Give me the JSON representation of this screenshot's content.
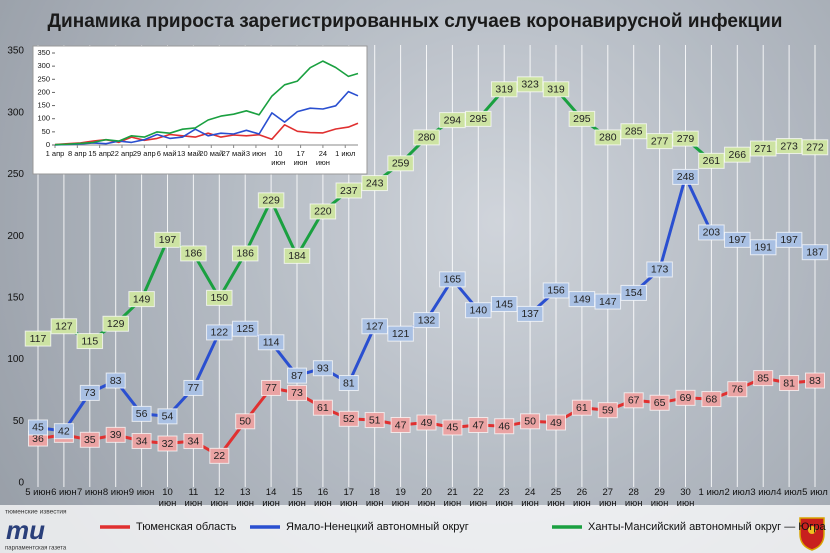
{
  "chart_data": [
    {
      "type": "line",
      "title": "Динамика прироста зарегистрированных случаев коронавирусной инфекции",
      "categories": [
        "5 июн",
        "6 июн",
        "7 июн",
        "8 июн",
        "9 июн",
        "10 июн",
        "11 июн",
        "12 июн",
        "13 июн",
        "14 июн",
        "15 июн",
        "16 июн",
        "17 июн",
        "18 июн",
        "19 июн",
        "20 июн",
        "21 июн",
        "22 июн",
        "23 июн",
        "24 июн",
        "25 июн",
        "26 июн",
        "27 июн",
        "28 июн",
        "29 июн",
        "30 июн",
        "1 июл",
        "2 июл",
        "3 июл",
        "4 июл",
        "5 июл"
      ],
      "series": [
        {
          "name": "Тюменская область",
          "color": "#e03030",
          "label_color": "#eaa3a3",
          "values": [
            36,
            39,
            35,
            39,
            34,
            32,
            34,
            22,
            50,
            77,
            73,
            61,
            52,
            51,
            47,
            49,
            45,
            47,
            46,
            50,
            49,
            61,
            59,
            67,
            65,
            69,
            68,
            76,
            85,
            81,
            83
          ]
        },
        {
          "name": "Ямало-Ненецкий автономный округ",
          "color": "#2a4fd0",
          "label_color": "#a9c0e3",
          "values": [
            45,
            42,
            73,
            83,
            56,
            54,
            77,
            122,
            125,
            114,
            87,
            93,
            81,
            127,
            121,
            132,
            165,
            140,
            145,
            137,
            156,
            149,
            147,
            154,
            173,
            248,
            203,
            197,
            191,
            197,
            187
          ]
        },
        {
          "name": "Ханты-Мансийский автономный округ — Югра",
          "color": "#1aa040",
          "label_color": "#cde3a3",
          "values": [
            117,
            127,
            115,
            129,
            149,
            197,
            186,
            150,
            186,
            229,
            184,
            220,
            237,
            243,
            259,
            280,
            294,
            295,
            319,
            323,
            319,
            295,
            280,
            285,
            277,
            279,
            261,
            266,
            271,
            273,
            272
          ]
        }
      ],
      "ylim": [
        0,
        350
      ],
      "yticks": [
        0,
        50,
        100,
        150,
        200,
        250,
        300,
        350
      ],
      "grid": true,
      "legend": "bottom"
    },
    {
      "type": "line",
      "x": [
        0,
        4,
        8,
        12,
        16,
        20,
        24,
        28,
        32,
        36,
        40,
        44,
        48,
        52,
        56,
        60,
        64,
        68,
        72,
        76,
        80,
        84,
        88,
        92,
        95
      ],
      "series": [
        {
          "color": "#e03030",
          "values": [
            2,
            5,
            8,
            15,
            20,
            10,
            30,
            18,
            25,
            40,
            35,
            30,
            45,
            30,
            38,
            35,
            39,
            22,
            77,
            52,
            47,
            46,
            61,
            68,
            83
          ]
        },
        {
          "color": "#2a4fd0",
          "values": [
            0,
            2,
            4,
            8,
            5,
            15,
            10,
            20,
            40,
            25,
            30,
            60,
            35,
            45,
            42,
            56,
            42,
            122,
            87,
            127,
            140,
            137,
            149,
            203,
            187
          ]
        },
        {
          "color": "#1aa040",
          "values": [
            1,
            3,
            6,
            10,
            20,
            15,
            35,
            30,
            50,
            45,
            60,
            65,
            95,
            110,
            117,
            130,
            115,
            186,
            229,
            243,
            294,
            319,
            295,
            261,
            272
          ]
        }
      ],
      "xlim": [
        0,
        95
      ],
      "xticks": [
        {
          "value": 0,
          "label": "1 апр"
        },
        {
          "value": 7,
          "label": "8 апр"
        },
        {
          "value": 14,
          "label": "15 апр"
        },
        {
          "value": 21,
          "label": "22 апр"
        },
        {
          "value": 28,
          "label": "29 апр"
        },
        {
          "value": 35,
          "label": "6 май"
        },
        {
          "value": 42,
          "label": "13 май"
        },
        {
          "value": 49,
          "label": "20 май"
        },
        {
          "value": 56,
          "label": "27 май"
        },
        {
          "value": 63,
          "label": "3 июн"
        },
        {
          "value": 70,
          "label": "10 июн"
        },
        {
          "value": 77,
          "label": "17 июн"
        },
        {
          "value": 84,
          "label": "24 июн"
        },
        {
          "value": 91,
          "label": "1 июл"
        }
      ],
      "ylim": [
        0,
        350
      ],
      "yticks": [
        0,
        50,
        100,
        150,
        200,
        250,
        300,
        350
      ],
      "grid": false
    }
  ],
  "logo": {
    "top": "тюменские известия",
    "mark": "ти",
    "bottom": "парламентская газета"
  }
}
